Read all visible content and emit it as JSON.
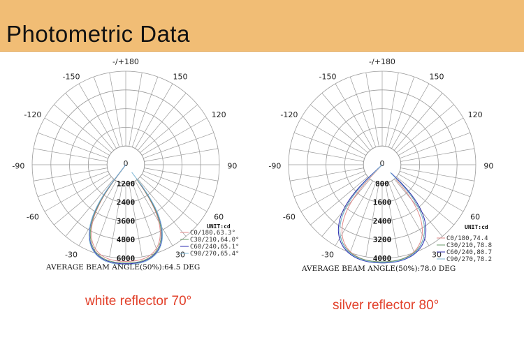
{
  "header": {
    "title": "Photometric Data"
  },
  "colors": {
    "header_bg": "#f1bd75",
    "caption": "#e2402a",
    "grid": "#9a9a9a",
    "c0": "#e08b8b",
    "c30": "#6a9a6a",
    "c60": "#2b2bb0",
    "c90": "#7fb8d6"
  },
  "chart_data": [
    {
      "type": "polar",
      "caption": "white reflector 70°",
      "angle_labels": [
        "-/+180",
        "-150",
        "150",
        "-120",
        "120",
        "-90",
        "90",
        "-60",
        "60",
        "-30",
        "30",
        "0"
      ],
      "radial_ticks": [
        "1200",
        "2400",
        "3600",
        "4800",
        "6000"
      ],
      "rmax": 6000,
      "unit": "UNIT:cd",
      "legend": [
        "C0/180,63.3°",
        "C30/210,64.0°",
        "C60/240,65.1°",
        "C90/270,65.4°"
      ],
      "beam_text": "AVERAGE BEAM ANGLE(50%):64.5 DEG",
      "series": [
        {
          "name": "C0/180",
          "half_angle": 31.6,
          "peak": 6200
        },
        {
          "name": "C30/210",
          "half_angle": 32.0,
          "peak": 6300
        },
        {
          "name": "C60/240",
          "half_angle": 32.6,
          "peak": 6350
        },
        {
          "name": "C90/270",
          "half_angle": 32.7,
          "peak": 6400
        }
      ]
    },
    {
      "type": "polar",
      "caption": "silver reflector 80°",
      "angle_labels": [
        "-/+180",
        "-150",
        "150",
        "-120",
        "120",
        "-90",
        "90",
        "-60",
        "60",
        "-30",
        "30",
        "0"
      ],
      "radial_ticks": [
        "800",
        "1600",
        "2400",
        "3200",
        "4000"
      ],
      "rmax": 4000,
      "unit": "UNIT:cd",
      "legend": [
        "C0/180,74.4",
        "C30/210,78.8",
        "C60/240,80.7",
        "C90/270,78.2"
      ],
      "beam_text": "AVERAGE BEAM ANGLE(50%):78.0 DEG",
      "series": [
        {
          "name": "C0/180",
          "half_angle": 37.2,
          "peak": 4150
        },
        {
          "name": "C30/210",
          "half_angle": 39.4,
          "peak": 4150
        },
        {
          "name": "C60/240",
          "half_angle": 40.4,
          "peak": 4200
        },
        {
          "name": "C90/270",
          "half_angle": 39.1,
          "peak": 4180
        }
      ]
    }
  ]
}
